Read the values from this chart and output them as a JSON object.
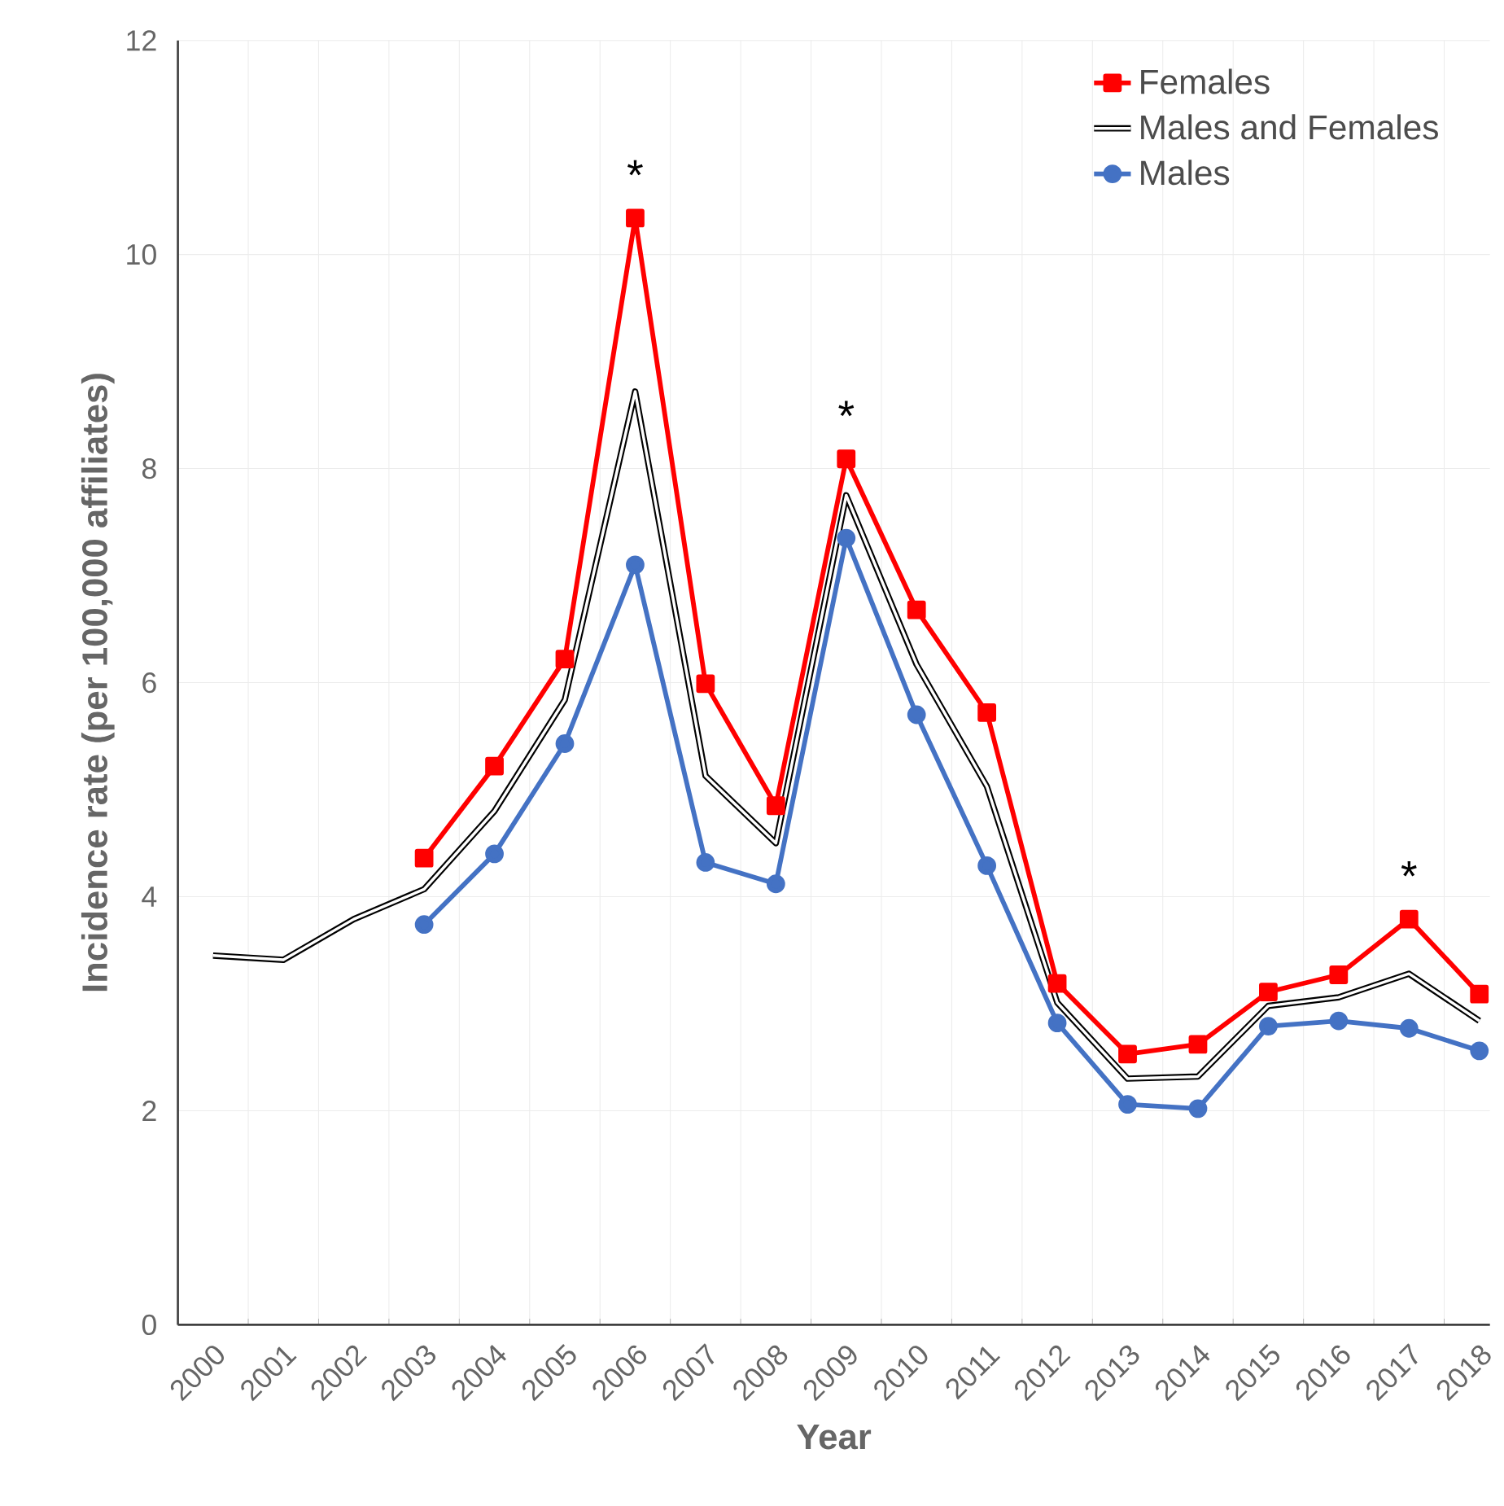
{
  "chart_data": {
    "type": "line",
    "xlabel": "Year",
    "ylabel": "Incidence rate (per 100,000 affiliates)",
    "categories": [
      "2000",
      "2001",
      "2002",
      "2003",
      "2004",
      "2005",
      "2006",
      "2007",
      "2008",
      "2009",
      "2010",
      "2011",
      "2012",
      "2013",
      "2014",
      "2015",
      "2016",
      "2017",
      "2018"
    ],
    "series": [
      {
        "name": "Females",
        "color": "#ff0000",
        "marker": "square",
        "values": [
          null,
          null,
          null,
          4.36,
          5.22,
          6.22,
          10.34,
          5.99,
          4.85,
          8.09,
          6.68,
          5.72,
          3.19,
          2.53,
          2.62,
          3.11,
          3.27,
          3.79,
          3.09
        ]
      },
      {
        "name": "Males and Females",
        "color": "#000000",
        "marker": "none",
        "values": [
          3.45,
          3.41,
          3.79,
          4.07,
          4.8,
          5.84,
          8.72,
          5.13,
          4.5,
          7.75,
          6.17,
          5.03,
          3.01,
          2.3,
          2.32,
          2.98,
          3.06,
          3.28,
          2.84
        ]
      },
      {
        "name": "Males",
        "color": "#4472c4",
        "marker": "circle",
        "values": [
          null,
          null,
          null,
          3.74,
          4.4,
          5.43,
          7.1,
          4.32,
          4.12,
          7.35,
          5.7,
          4.29,
          2.82,
          2.06,
          2.02,
          2.79,
          2.84,
          2.77,
          2.56
        ]
      }
    ],
    "ylim": [
      0,
      12
    ],
    "yticks": [
      0,
      2,
      4,
      6,
      8,
      10,
      12
    ],
    "grid": true,
    "legend": "top right",
    "annotations": [
      {
        "text": "*",
        "x": "2006",
        "y": 10.34
      },
      {
        "text": "*",
        "x": "2009",
        "y": 8.09
      },
      {
        "text": "*",
        "x": "2017",
        "y": 3.79
      }
    ]
  }
}
